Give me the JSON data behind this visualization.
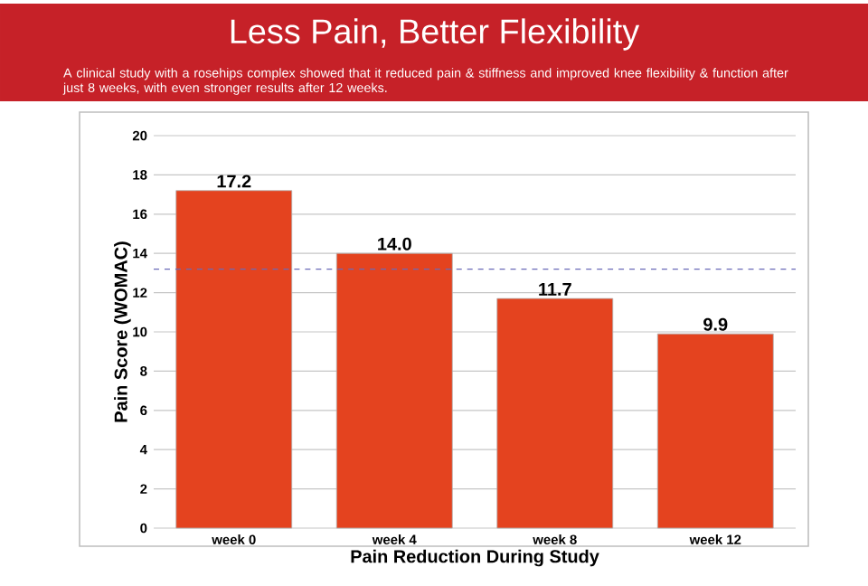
{
  "chart_data": {
    "type": "bar",
    "title": "Less Pain, Better Flexibility",
    "subtitle": "A clinical study with a rosehips complex showed that it reduced pain & stiffness and improved knee flexibility & function after just 8 weeks, with even stronger results after 12 weeks.",
    "xlabel": "Pain Reduction During Study",
    "ylabel": "Pain Score (WOMAC)",
    "categories": [
      "week 0",
      "week 4",
      "week 8",
      "week 12"
    ],
    "values": [
      17.2,
      14.0,
      11.7,
      9.9
    ],
    "value_labels": [
      "17.2",
      "14.0",
      "11.7",
      "9.9"
    ],
    "color": "#e4431f",
    "ylim": [
      0,
      20
    ],
    "yticks": [
      0,
      2,
      4,
      6,
      8,
      10,
      12,
      14,
      16,
      18,
      20
    ],
    "grid": "y",
    "ref_lines": [
      {
        "axis": "y",
        "value": 13.2,
        "color": "#6a6ab8",
        "line_style": "dashed"
      }
    ]
  }
}
